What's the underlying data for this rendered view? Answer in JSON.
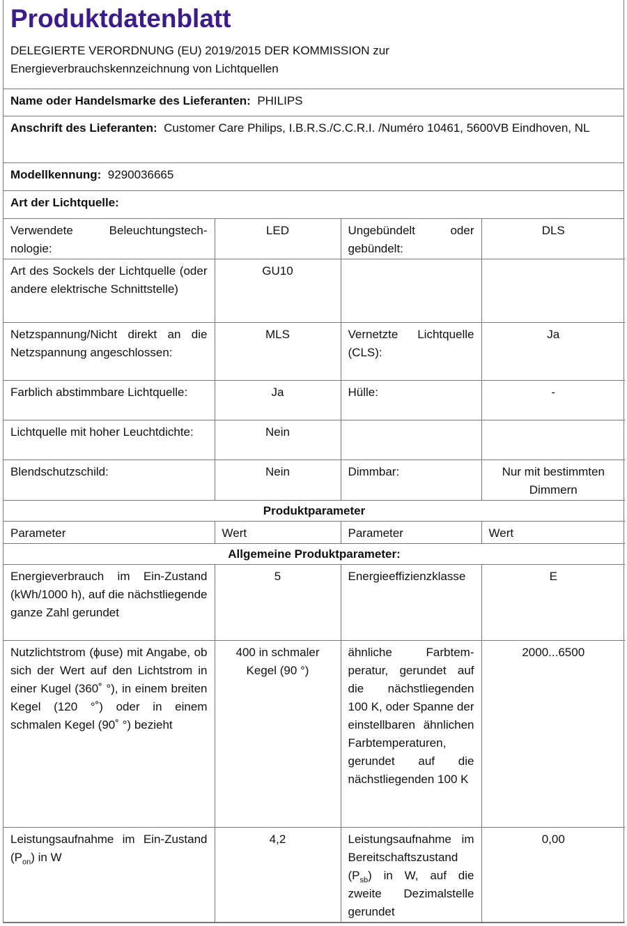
{
  "title": "Produktdatenblatt",
  "subtitle_line1": "DELEGIERTE VERORDNUNG (EU) 2019/2015 DER KOMMISSION zur",
  "subtitle_line2": "Energieverbrauchskennzeichnung von Lichtquellen",
  "supplier": {
    "label": "Name oder Handelsmarke des Lieferanten:",
    "value": "PHILIPS"
  },
  "address": {
    "label": "Anschrift des Lieferanten:",
    "value": "Customer Care Philips, I.B.R.S./C.C.R.I. /Numéro 10461, 5600VB Eind­hoven, NL"
  },
  "model": {
    "label": "Modellkennung:",
    "value": "9290036665"
  },
  "type_heading": "Art der Lichtquelle:",
  "type_rows": [
    {
      "p1": "Verwendete Beleuchtungstech­nologie:",
      "v1": "LED",
      "p2": "Ungebündelt oder gebündelt:",
      "v2": "DLS"
    },
    {
      "p1": "Art des Sockels der Lichtquelle (oder andere elektrische Schnittstelle)",
      "v1": "GU10",
      "p2": "",
      "v2": ""
    },
    {
      "p1": "Netzspannung/Nicht direkt an die Netzspannung angeschlos­sen:",
      "v1": "MLS",
      "p2": "Vernetzte Lichtquel­le (CLS):",
      "v2": "Ja"
    },
    {
      "p1": "Farblich abstimmbare Licht­quelle:",
      "v1": "Ja",
      "p2": "Hülle:",
      "v2": "-"
    },
    {
      "p1": "Lichtquelle mit hoher Leucht­dichte:",
      "v1": "Nein",
      "p2": "",
      "v2": ""
    },
    {
      "p1": "Blendschutzschild:",
      "v1": "Nein",
      "p2": "Dimmbar:",
      "v2": "Nur mit bestimm­ten Dimmern"
    }
  ],
  "params_heading": "Produktparameter",
  "col_headers": [
    "Parameter",
    "Wert",
    "Parameter",
    "Wert"
  ],
  "general_heading": "Allgemeine Produktparameter:",
  "general_rows": [
    {
      "p1": "Energieverbrauch im Ein-Zu­stand (kWh/1000 h), auf die nächstliegende ganze Zahl ge­rundet",
      "v1": "5",
      "p2": "Energieeffizienzklas­se",
      "v2": "E"
    },
    {
      "p1": "Nutzlichtstrom (ϕuse) mit An­gabe, ob sich der Wert auf den Lichtstrom in einer Kugel (360˚ °), in einem breiten Kegel (120 °˚) oder in einem schmalen Kegel (90˚ °) bezieht",
      "v1": "400 in schma­ler Kegel (90 °)",
      "p2": "ähnliche Farbtem­peratur, gerundet auf die nächst­liegenden 100 K, oder Spanne der einstellbaren ähnli­chen Farbtempera­turen, gerundet auf die nächstliegenden 100 K",
      "v2": "2000...6500"
    }
  ],
  "power_row": {
    "p1_a": "Leistungsaufnahme im Ein-Zu­stand (P",
    "p1_sub": "on",
    "p1_b": ") in W",
    "v1": "4,2",
    "p2_a": "Leistungsaufnahme im Bereitschaftszu­stand (P",
    "p2_sub": "sb",
    "p2_b": ") in W, auf die zweite Dezimal­stelle gerundet",
    "v2": "0,00"
  }
}
